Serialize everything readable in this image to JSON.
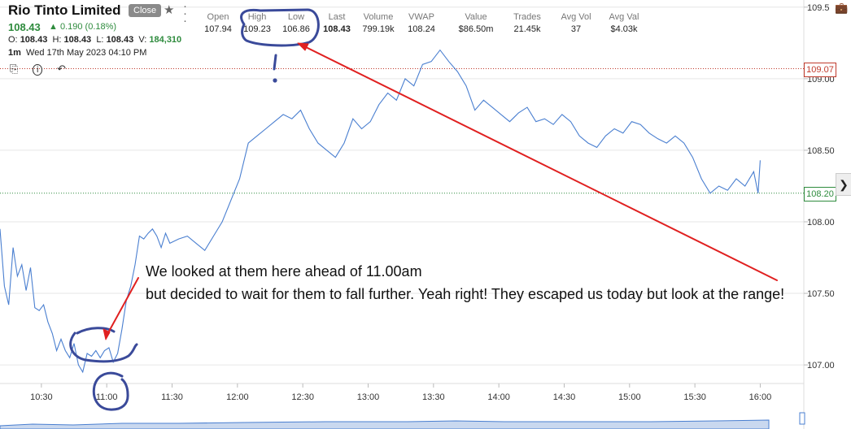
{
  "header": {
    "title": "Rio Tinto Limited",
    "status_badge": "Close",
    "price": "108.43",
    "change": "0.190 (0.18%)",
    "ohlc": {
      "o_label": "O:",
      "o": "108.43",
      "h_label": "H:",
      "h": "108.43",
      "l_label": "L:",
      "l": "108.43",
      "v_label": "V:",
      "v": "184,310"
    },
    "interval": "1m",
    "datetime": "Wed 17th May 2023 04:10 PM"
  },
  "stats": [
    {
      "label": "Open",
      "value": "107.94",
      "bold": false
    },
    {
      "label": "High",
      "value": "109.23",
      "bold": false
    },
    {
      "label": "Low",
      "value": "106.86",
      "bold": false
    },
    {
      "label": "Last",
      "value": "108.43",
      "bold": true
    },
    {
      "label": "Volume",
      "value": "799.19k",
      "bold": false
    },
    {
      "label": "VWAP",
      "value": "108.24",
      "bold": false
    },
    {
      "label": "Value",
      "value": "$86.50m",
      "bold": false
    },
    {
      "label": "Trades",
      "value": "21.45k",
      "bold": false
    },
    {
      "label": "Avg Vol",
      "value": "37",
      "bold": false
    },
    {
      "label": "Avg Val",
      "value": "$4.03k",
      "bold": false
    }
  ],
  "annotation": {
    "line1": "We looked at them here ahead of 11.00am",
    "line2": "but decided to wait for them to fall further. Yeah right! They escaped us today but look at the range!"
  },
  "colors": {
    "line": "#4a7fd0",
    "gain": "#2e8b3d",
    "high_line": "#c0392b",
    "arrow": "#e02020",
    "marker": "#3a4a9a",
    "grid": "#e6e6e6"
  },
  "icons": {
    "star": "star-icon",
    "menu": "vertical-dots-icon",
    "save": "save-icon",
    "info": "info-icon",
    "undo": "undo-icon",
    "next": "chevron-right-icon",
    "briefcase": "briefcase-icon"
  },
  "chart_data": {
    "type": "line",
    "x_ticks": [
      "10:30",
      "11:00",
      "11:30",
      "12:00",
      "12:30",
      "13:00",
      "13:30",
      "14:00",
      "14:30",
      "15:00",
      "15:30",
      "16:00"
    ],
    "y_ticks": [
      "107.00",
      "107.50",
      "108.00",
      "108.50",
      "109.00",
      "109.5"
    ],
    "ylim": [
      106.87,
      109.55
    ],
    "xlim": [
      "10:11",
      "16:20"
    ],
    "price_tags": [
      {
        "value": 109.07,
        "label": "109.07"
      },
      {
        "value": 108.2,
        "label": "108.20"
      }
    ],
    "series": [
      {
        "x": [
          "10:11",
          "10:13",
          "10:15",
          "10:17",
          "10:19",
          "10:21",
          "10:23",
          "10:25",
          "10:27",
          "10:29",
          "10:31",
          "10:33",
          "10:35",
          "10:37",
          "10:39",
          "10:41",
          "10:43",
          "10:45",
          "10:47",
          "10:49",
          "10:51",
          "10:53",
          "10:55",
          "10:57",
          "10:59",
          "11:01",
          "11:03",
          "11:05",
          "11:07",
          "11:09",
          "11:11",
          "11:13",
          "11:15",
          "11:17",
          "11:19",
          "11:21",
          "11:23",
          "11:25",
          "11:27",
          "11:29",
          "11:33",
          "11:37",
          "11:41",
          "11:45",
          "11:49",
          "11:53",
          "11:57",
          "12:01",
          "12:05",
          "12:09",
          "12:13",
          "12:17",
          "12:21",
          "12:25",
          "12:29",
          "12:33",
          "12:37",
          "12:41",
          "12:45",
          "12:49",
          "12:53",
          "12:57",
          "13:01",
          "13:05",
          "13:09",
          "13:13",
          "13:17",
          "13:21",
          "13:25",
          "13:29",
          "13:33",
          "13:37",
          "13:41",
          "13:45",
          "13:49",
          "13:53",
          "13:57",
          "14:01",
          "14:05",
          "14:09",
          "14:13",
          "14:17",
          "14:21",
          "14:25",
          "14:29",
          "14:33",
          "14:37",
          "14:41",
          "14:45",
          "14:49",
          "14:53",
          "14:57",
          "15:01",
          "15:05",
          "15:09",
          "15:13",
          "15:17",
          "15:21",
          "15:25",
          "15:29",
          "15:33",
          "15:37",
          "15:41",
          "15:45",
          "15:49",
          "15:53",
          "15:57",
          "15:59",
          "16:00"
        ],
        "y": [
          107.95,
          107.55,
          107.42,
          107.82,
          107.62,
          107.7,
          107.52,
          107.68,
          107.4,
          107.38,
          107.42,
          107.3,
          107.22,
          107.1,
          107.18,
          107.1,
          107.05,
          107.15,
          107.0,
          106.95,
          107.08,
          107.06,
          107.1,
          107.05,
          107.1,
          107.12,
          107.02,
          107.08,
          107.25,
          107.45,
          107.55,
          107.7,
          107.9,
          107.88,
          107.92,
          107.95,
          107.9,
          107.82,
          107.92,
          107.85,
          107.88,
          107.9,
          107.85,
          107.8,
          107.9,
          108.0,
          108.15,
          108.3,
          108.55,
          108.6,
          108.65,
          108.7,
          108.75,
          108.72,
          108.78,
          108.65,
          108.55,
          108.5,
          108.45,
          108.55,
          108.72,
          108.65,
          108.7,
          108.82,
          108.9,
          108.85,
          109.0,
          108.95,
          109.1,
          109.12,
          109.2,
          109.12,
          109.05,
          108.95,
          108.78,
          108.85,
          108.8,
          108.75,
          108.7,
          108.76,
          108.8,
          108.7,
          108.72,
          108.68,
          108.75,
          108.7,
          108.6,
          108.55,
          108.52,
          108.6,
          108.65,
          108.62,
          108.7,
          108.68,
          108.62,
          108.58,
          108.55,
          108.6,
          108.55,
          108.45,
          108.3,
          108.2,
          108.25,
          108.22,
          108.3,
          108.25,
          108.35,
          108.2,
          108.43
        ]
      }
    ]
  }
}
